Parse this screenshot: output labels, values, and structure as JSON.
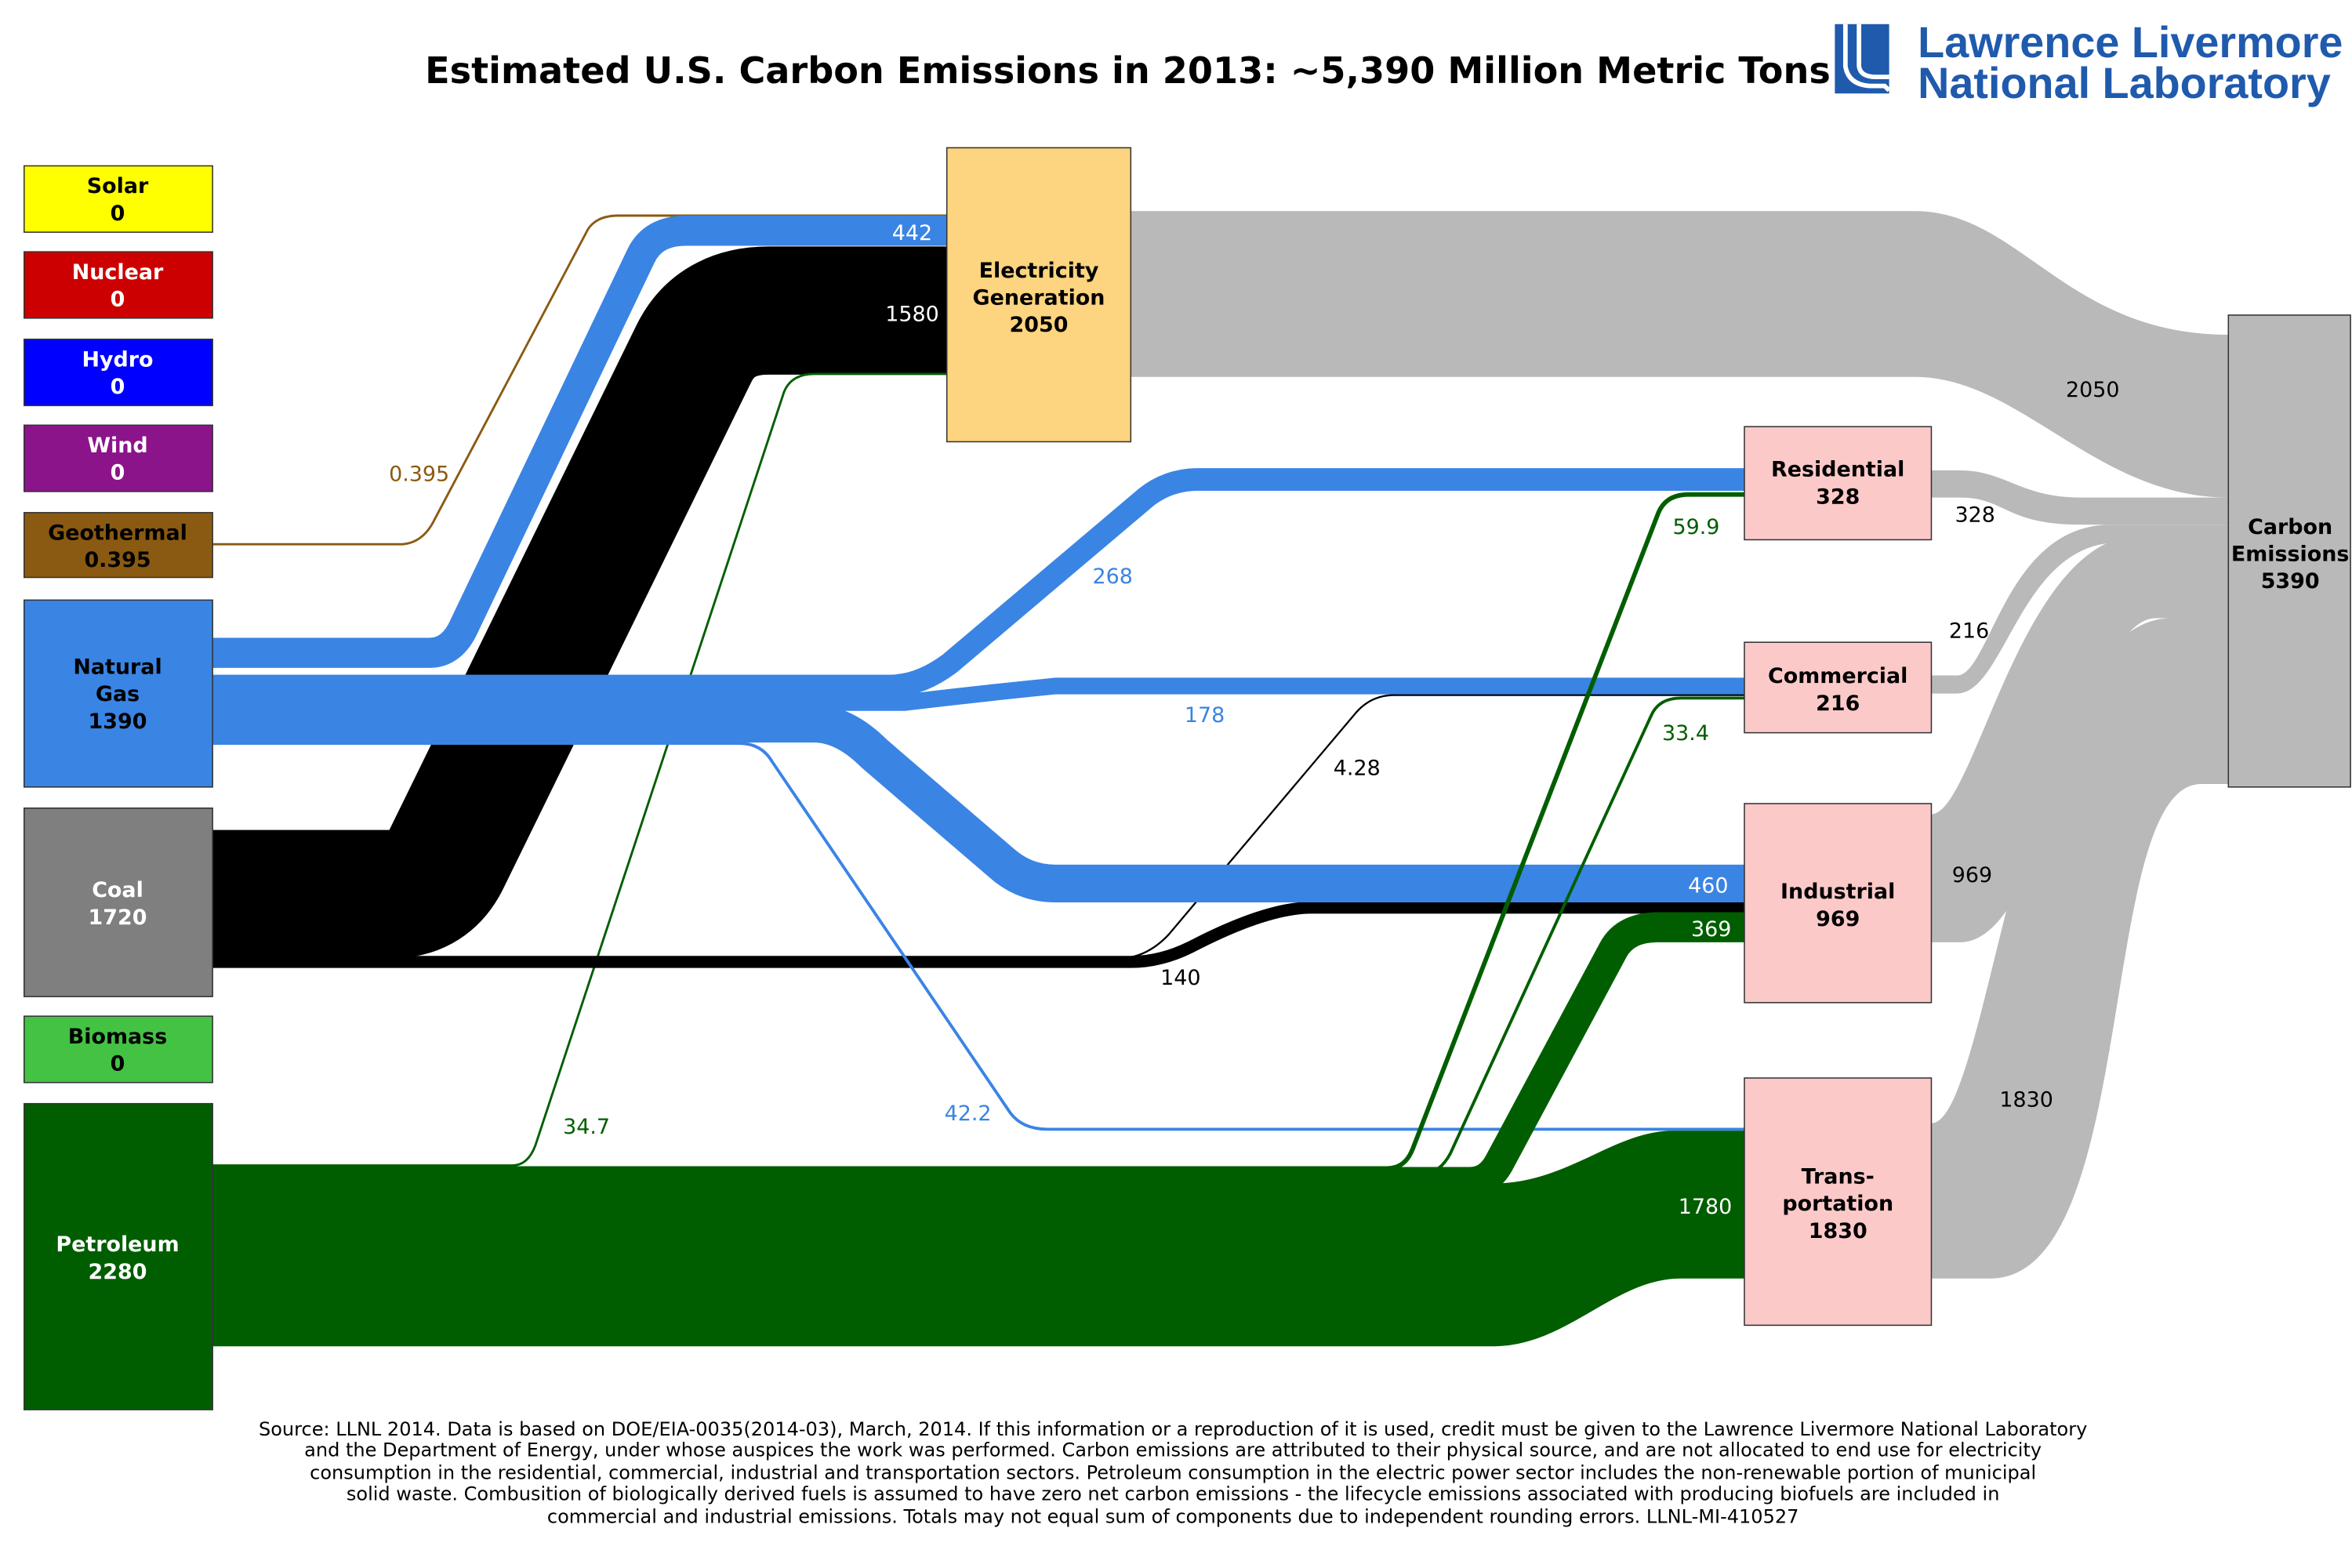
{
  "title": "Estimated U.S. Carbon Emissions in 2013: ~5,390 Million Metric Tons",
  "logo": {
    "line1": "Lawrence Livermore",
    "line2": "National Laboratory",
    "color": "#1f5aad"
  },
  "colors": {
    "natural_gas": "#3a84e4",
    "coal": "#000000",
    "petroleum": "#005e00",
    "geothermal": "#8b5a12",
    "emissions_flow": "#b9b9b9",
    "electricity": "#fdd47f",
    "end_use": "#fcc9c9"
  },
  "sources": {
    "solar": {
      "lines": [
        "Solar"
      ],
      "value": "0",
      "color": "#ffff00"
    },
    "nuclear": {
      "lines": [
        "Nuclear"
      ],
      "value": "0",
      "color": "#cc0000"
    },
    "hydro": {
      "lines": [
        "Hydro"
      ],
      "value": "0",
      "color": "#0000ff"
    },
    "wind": {
      "lines": [
        "Wind"
      ],
      "value": "0",
      "color": "#8b148b"
    },
    "geothermal": {
      "lines": [
        "Geothermal"
      ],
      "value": "0.395",
      "color": "#8b5a12"
    },
    "natural_gas": {
      "lines": [
        "Natural",
        "Gas"
      ],
      "value": "1390",
      "color": "#3a84e4"
    },
    "coal": {
      "lines": [
        "Coal"
      ],
      "value": "1720",
      "color": "#7f7f7f"
    },
    "biomass": {
      "lines": [
        "Biomass"
      ],
      "value": "0",
      "color": "#44c244"
    },
    "petroleum": {
      "lines": [
        "Petroleum"
      ],
      "value": "2280",
      "color": "#005e00"
    }
  },
  "sinks": {
    "electricity": {
      "lines": [
        "Electricity",
        "Generation"
      ],
      "value": "2050"
    },
    "residential": {
      "lines": [
        "Residential"
      ],
      "value": "328"
    },
    "commercial": {
      "lines": [
        "Commercial"
      ],
      "value": "216"
    },
    "industrial": {
      "lines": [
        "Industrial"
      ],
      "value": "969"
    },
    "transportation": {
      "lines": [
        "Trans-",
        "portation"
      ],
      "value": "1830"
    },
    "carbon": {
      "lines": [
        "Carbon",
        "Emissions"
      ],
      "value": "5390"
    }
  },
  "flows": {
    "geo_elec": "0.395",
    "gas_elec": "442",
    "coal_elec": "1580",
    "pet_elec": "34.7",
    "gas_res": "268",
    "gas_com": "178",
    "gas_ind": "460",
    "gas_trans": "42.2",
    "coal_com": "4.28",
    "coal_ind": "140",
    "pet_res": "59.9",
    "pet_com": "33.4",
    "pet_ind": "369",
    "pet_trans": "1780",
    "elec_co2": "2050",
    "res_co2": "328",
    "com_co2": "216",
    "ind_co2": "969",
    "trans_co2": "1830"
  },
  "footer": [
    "Source: LLNL 2014. Data is based on DOE/EIA-0035(2014-03), March, 2014. If this information or a reproduction of it is used, credit must be given to the Lawrence Livermore National Laboratory",
    "and the Department of Energy, under whose auspices the work was performed. Carbon emissions are attributed to their physical source, and are not allocated to end use for electricity",
    "consumption in the residential, commercial, industrial and transportation sectors.  Petroleum consumption in the electric power sector includes the non-renewable portion of municipal",
    "solid waste.  Combusition of biologically derived fuels is assumed to have zero net carbon emissions - the lifecycle emissions associated with producing biofuels are included in",
    "commercial and industrial emissions.  Totals may not equal sum of components due to independent rounding errors.  LLNL-MI-410527"
  ]
}
